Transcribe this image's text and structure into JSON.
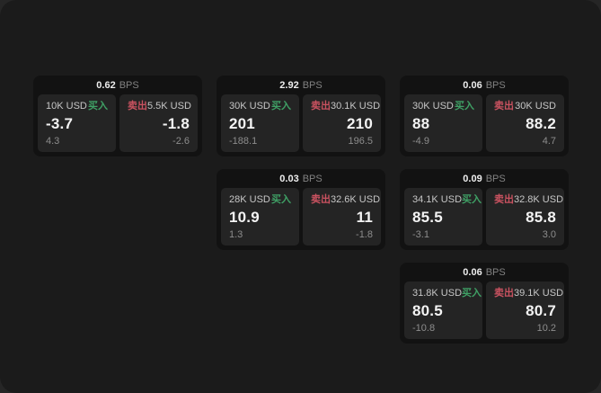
{
  "labels": {
    "bps": "BPS",
    "buy": "买入",
    "sell": "卖出"
  },
  "colors": {
    "backdrop": "#262626",
    "page_background": "#1b1b1b",
    "card_background": "#121212",
    "panel_background": "#242424",
    "buy_green": "#3fa065",
    "sell_red": "#c95260",
    "primary_text": "#f3f3f3",
    "muted_text": "#8d8d8d"
  },
  "cards": [
    {
      "bps": "0.62",
      "buy": {
        "amount": "10K USD",
        "price": "-3.7",
        "delta": "4.3"
      },
      "sell": {
        "amount": "5.5K USD",
        "price": "-1.8",
        "delta": "-2.6"
      }
    },
    {
      "bps": "2.92",
      "buy": {
        "amount": "30K USD",
        "price": "201",
        "delta": "-188.1"
      },
      "sell": {
        "amount": "30.1K USD",
        "price": "210",
        "delta": "196.5"
      }
    },
    {
      "bps": "0.06",
      "buy": {
        "amount": "30K USD",
        "price": "88",
        "delta": "-4.9"
      },
      "sell": {
        "amount": "30K USD",
        "price": "88.2",
        "delta": "4.7"
      }
    },
    {
      "bps": "0.03",
      "buy": {
        "amount": "28K USD",
        "price": "10.9",
        "delta": "1.3"
      },
      "sell": {
        "amount": "32.6K USD",
        "price": "11",
        "delta": "-1.8"
      }
    },
    {
      "bps": "0.09",
      "buy": {
        "amount": "34.1K USD",
        "price": "85.5",
        "delta": "-3.1"
      },
      "sell": {
        "amount": "32.8K USD",
        "price": "85.8",
        "delta": "3.0"
      }
    },
    {
      "bps": "0.06",
      "buy": {
        "amount": "31.8K USD",
        "price": "80.5",
        "delta": "-10.8"
      },
      "sell": {
        "amount": "39.1K USD",
        "price": "80.7",
        "delta": "10.2"
      }
    }
  ]
}
